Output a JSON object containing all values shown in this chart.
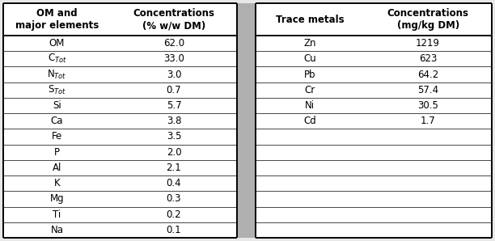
{
  "left_headers": [
    "OM and\nmajor elements",
    "Concentrations\n(% w/w DM)"
  ],
  "right_headers": [
    "Trace metals",
    "Concentrations\n(mg/kg DM)"
  ],
  "left_rows": [
    [
      "OM",
      "62.0"
    ],
    [
      "C$_{Tot}$",
      "33.0"
    ],
    [
      "N$_{Tot}$",
      "3.0"
    ],
    [
      "S$_{Tot}$",
      "0.7"
    ],
    [
      "Si",
      "5.7"
    ],
    [
      "Ca",
      "3.8"
    ],
    [
      "Fe",
      "3.5"
    ],
    [
      "P",
      "2.0"
    ],
    [
      "Al",
      "2.1"
    ],
    [
      "K",
      "0.4"
    ],
    [
      "Mg",
      "0.3"
    ],
    [
      "Ti",
      "0.2"
    ],
    [
      "Na",
      "0.1"
    ]
  ],
  "right_rows": [
    [
      "Zn",
      "1219"
    ],
    [
      "Cu",
      "623"
    ],
    [
      "Pb",
      "64.2"
    ],
    [
      "Cr",
      "57.4"
    ],
    [
      "Ni",
      "30.5"
    ],
    [
      "Cd",
      "1.7"
    ],
    [
      "",
      ""
    ],
    [
      "",
      ""
    ],
    [
      "",
      ""
    ],
    [
      "",
      ""
    ],
    [
      "",
      ""
    ],
    [
      "",
      ""
    ],
    [
      "",
      ""
    ]
  ],
  "bg_color": "#e8e8e8",
  "table_bg": "#ffffff",
  "header_font_size": 8.5,
  "cell_font_size": 8.5,
  "divider_color": "#b0b0b0",
  "thick_lw": 1.4,
  "thin_lw": 0.5
}
